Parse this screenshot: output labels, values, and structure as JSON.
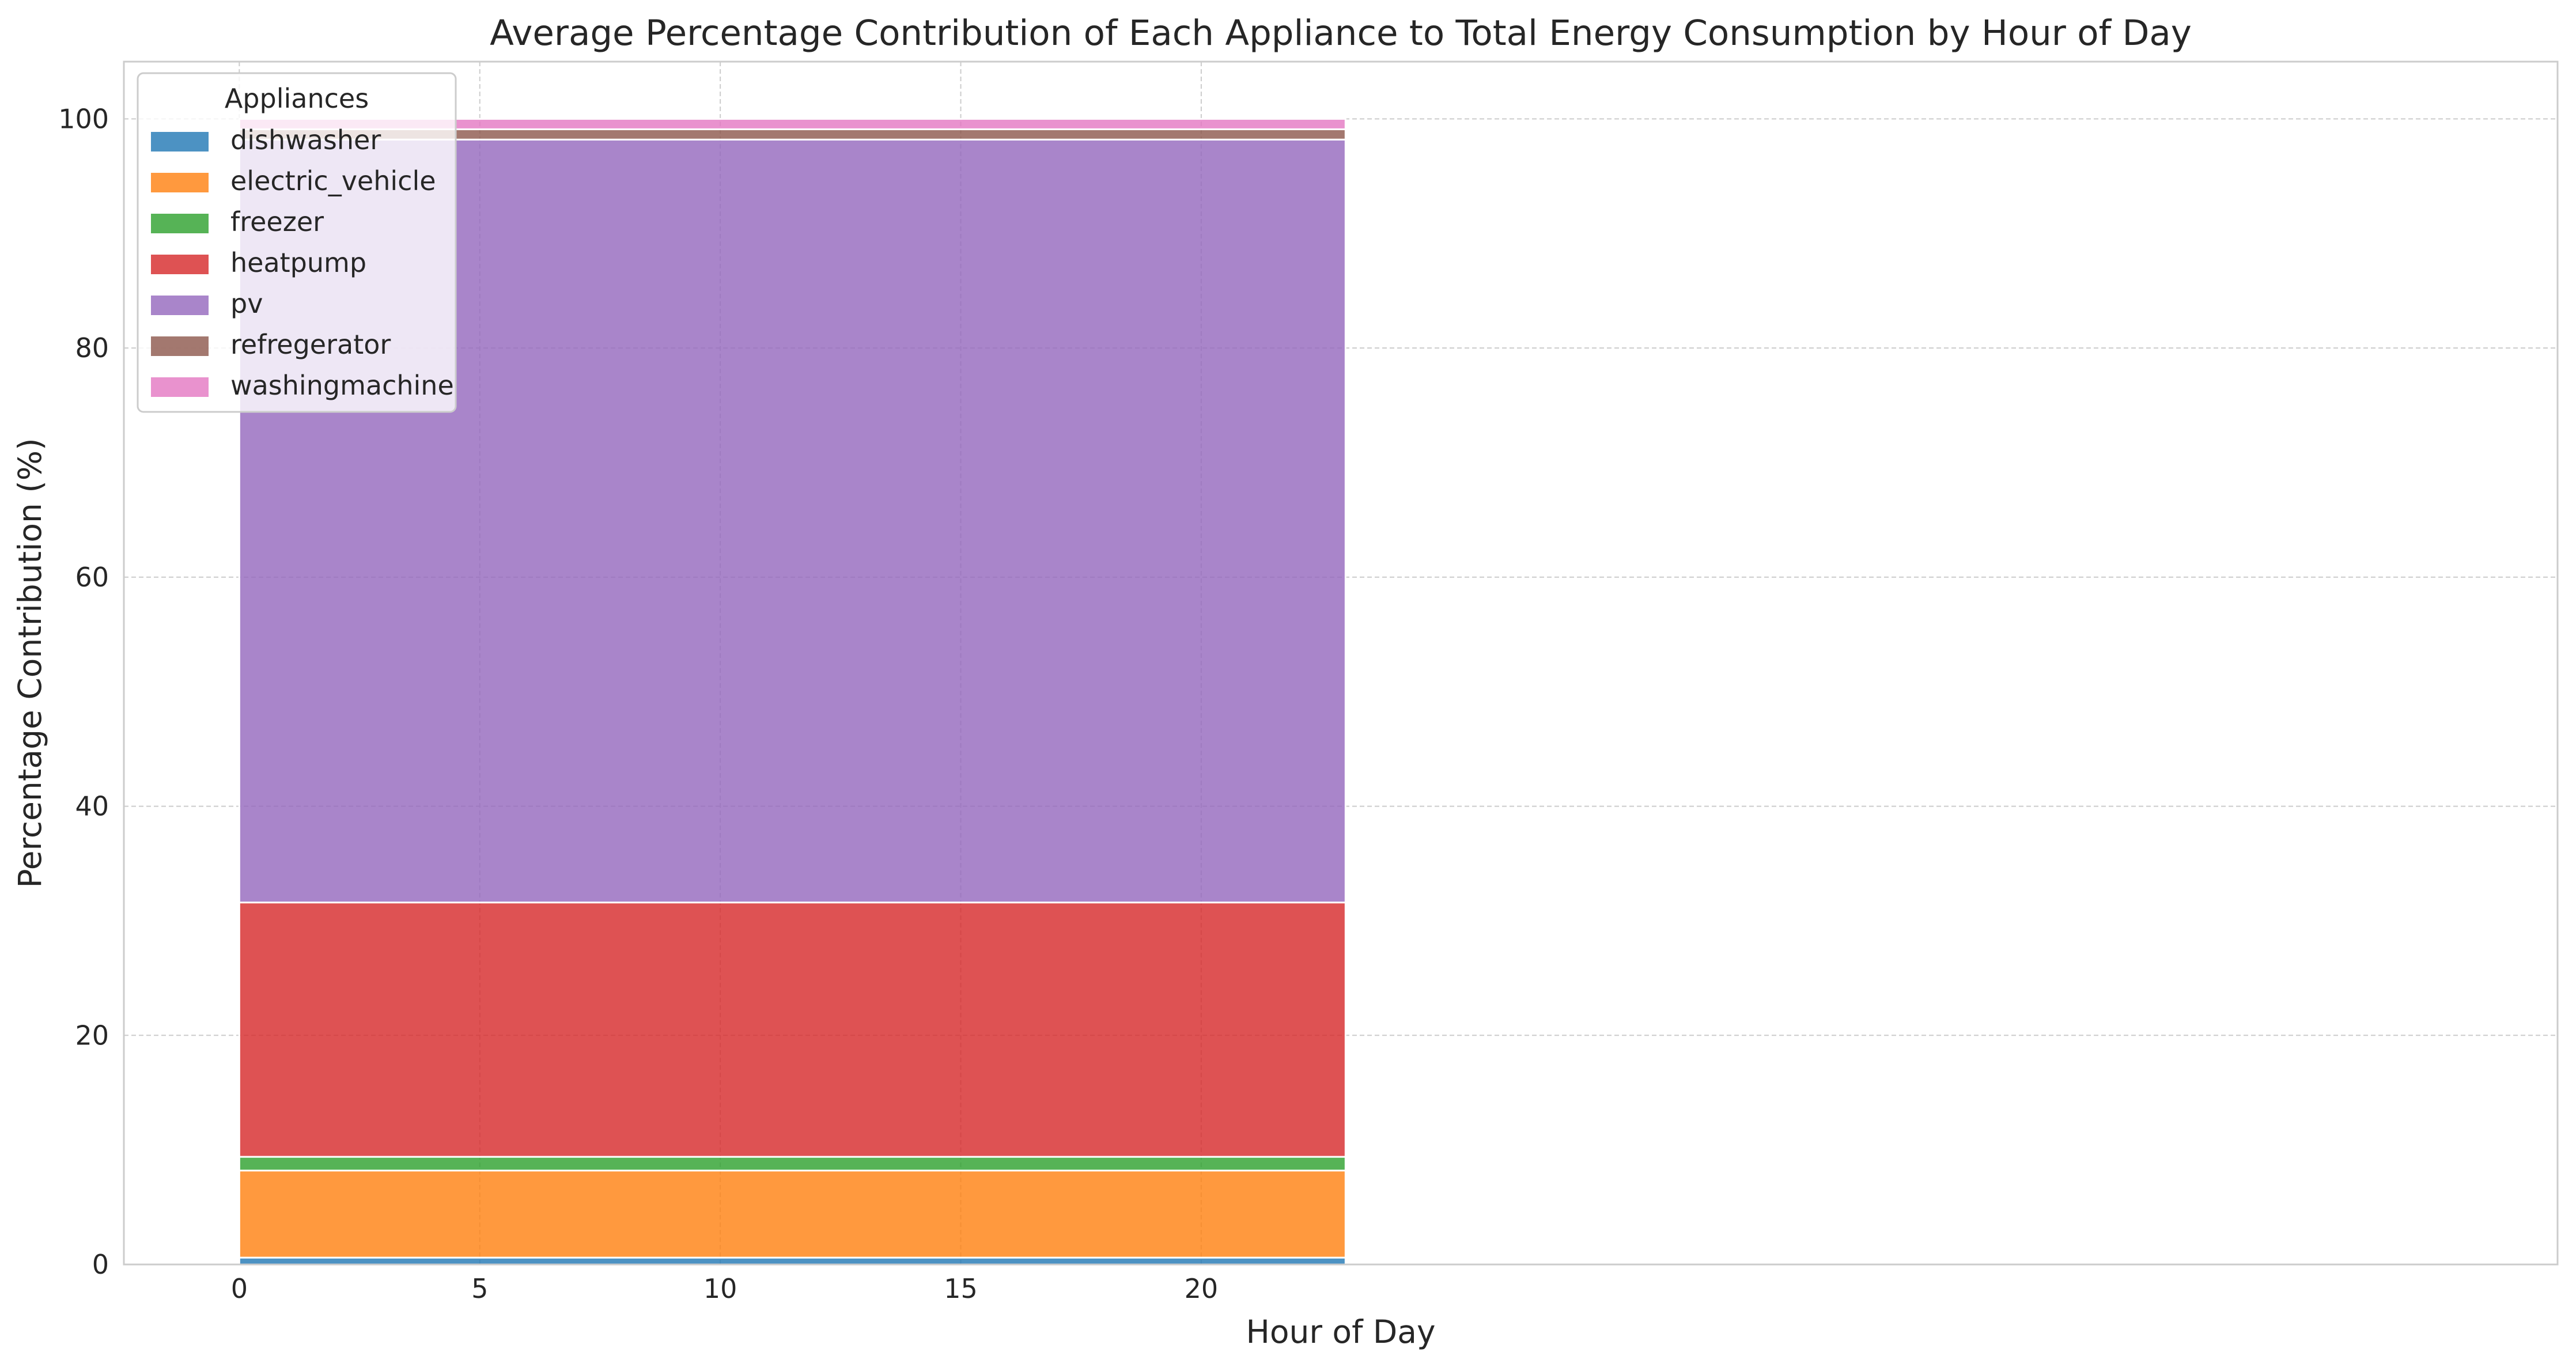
{
  "colors": {
    "background": "#ffffff",
    "grid": "#cccccc",
    "axes_edge": "#cccccc",
    "text": "#262626",
    "legend_face": "#ffffff",
    "legend_edge": "#cccccc"
  },
  "chart_data": {
    "type": "area",
    "stacked": true,
    "percent_scale": true,
    "title": "Average Percentage Contribution of Each Appliance to Total Energy Consumption by Hour of Day",
    "xlabel": "Hour of Day",
    "ylabel": "Percentage Contribution (%)",
    "xlim": [
      -2.4,
      48.2
    ],
    "ylim": [
      0,
      105
    ],
    "xticks": [
      0,
      5,
      10,
      15,
      20
    ],
    "yticks": [
      0,
      20,
      40,
      60,
      80,
      100
    ],
    "grid": true,
    "legend_title": "Appliances",
    "legend_position": "upper-left",
    "x": [
      0,
      23
    ],
    "series": [
      {
        "name": "dishwasher",
        "color": "#1f77b4",
        "values": [
          0.6,
          0.6
        ]
      },
      {
        "name": "electric_vehicle",
        "color": "#ff7f0e",
        "values": [
          7.6,
          7.6
        ]
      },
      {
        "name": "freezer",
        "color": "#2ca02c",
        "values": [
          1.2,
          1.2
        ]
      },
      {
        "name": "heatpump",
        "color": "#d62728",
        "values": [
          22.2,
          22.2
        ]
      },
      {
        "name": "pv",
        "color": "#9467bd",
        "values": [
          66.6,
          66.6
        ]
      },
      {
        "name": "refregerator",
        "color": "#8c564b",
        "values": [
          0.9,
          0.9
        ]
      },
      {
        "name": "washingmachine",
        "color": "#e377c2",
        "values": [
          0.9,
          0.9
        ]
      }
    ]
  }
}
